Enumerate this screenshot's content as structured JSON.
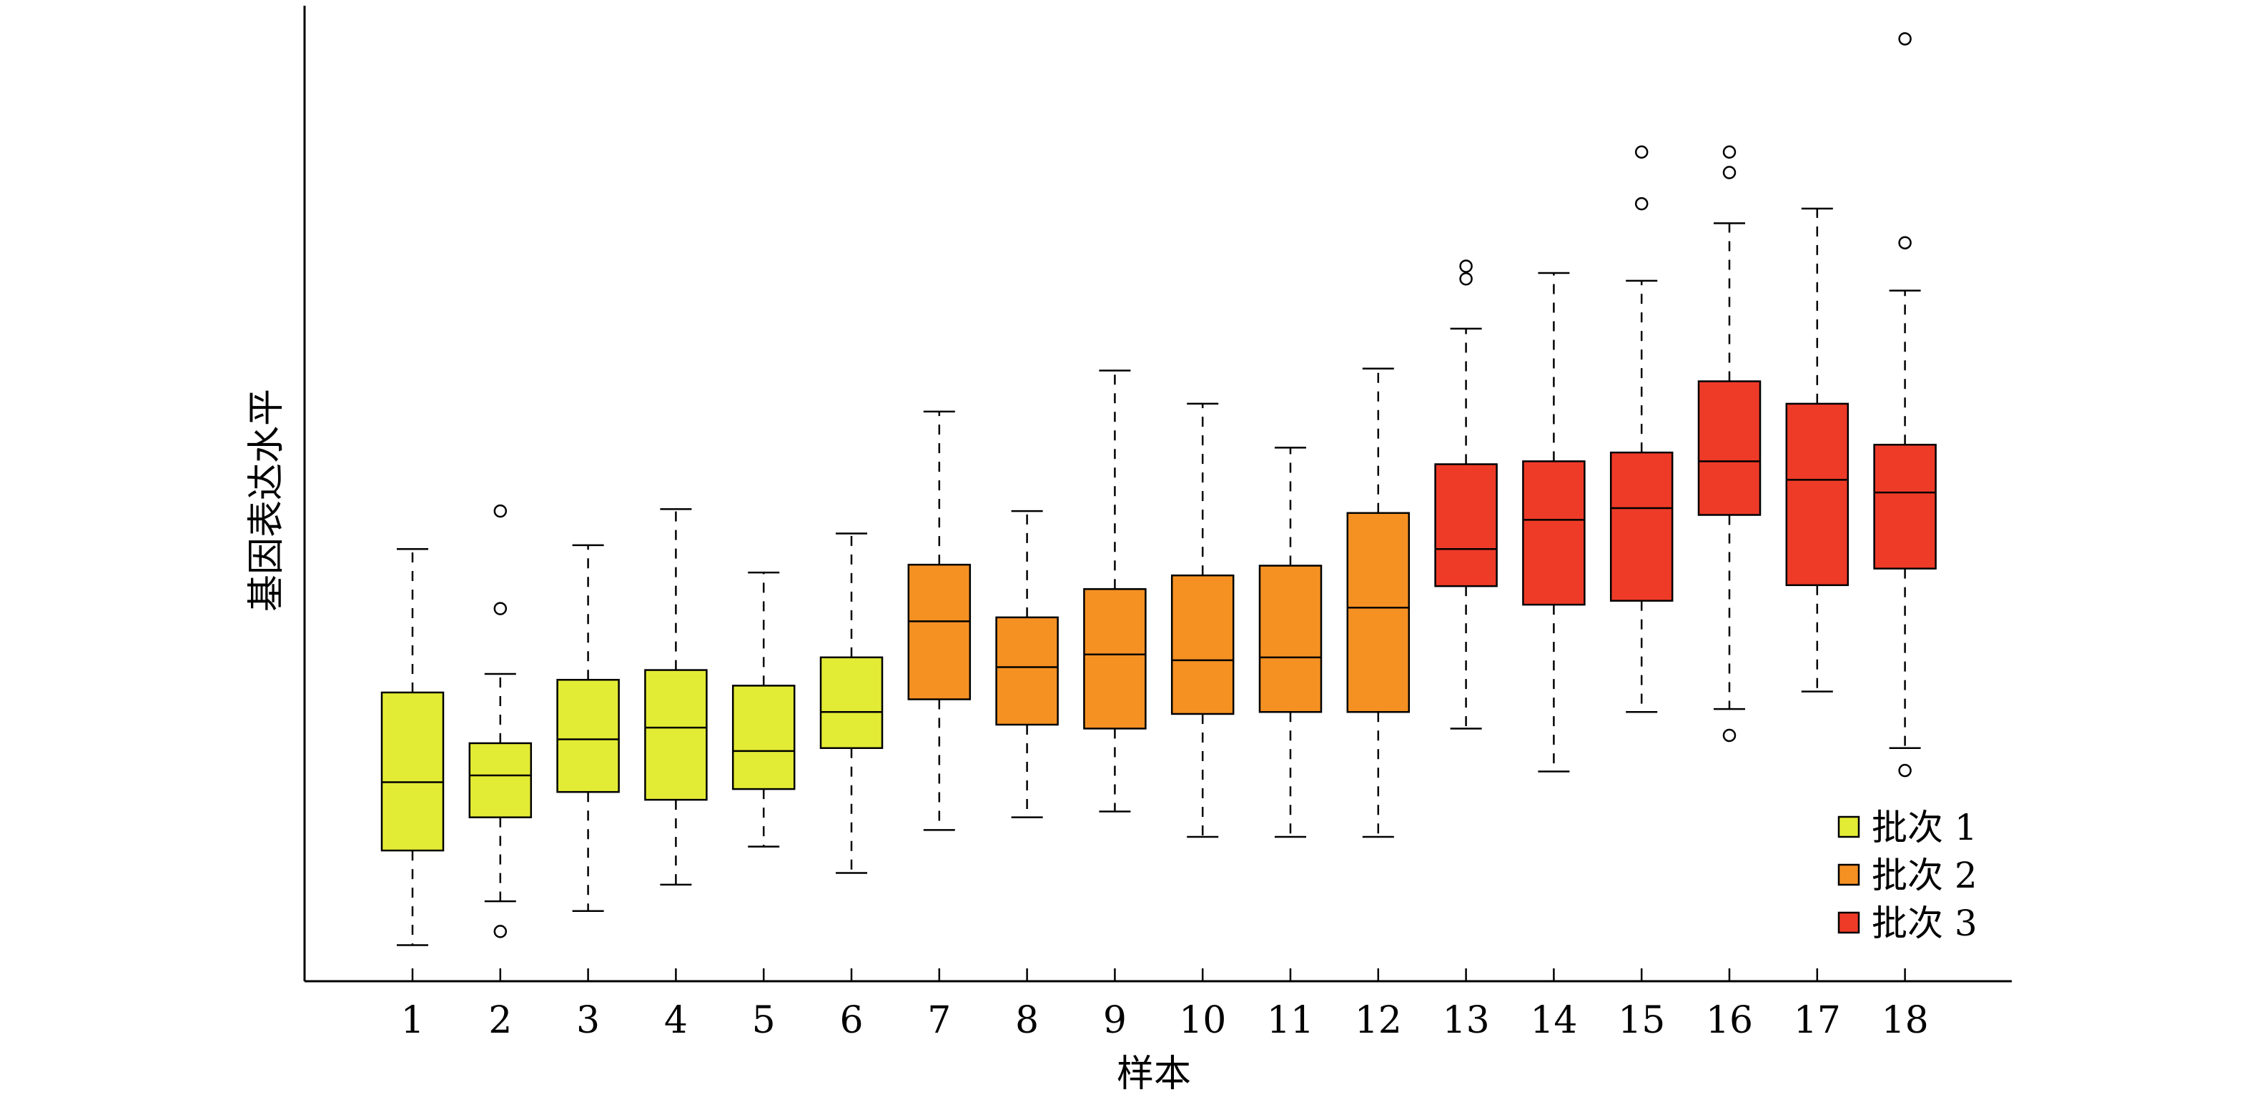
{
  "chart_data": {
    "type": "box",
    "xlabel": "样本",
    "ylabel": "基因表达水平",
    "categories": [
      "1",
      "2",
      "3",
      "4",
      "5",
      "6",
      "7",
      "8",
      "9",
      "10",
      "11",
      "12",
      "13",
      "14",
      "15",
      "16",
      "17",
      "18"
    ],
    "y_axis_ticks_shown": false,
    "ylim": [
      0,
      100
    ],
    "grid": false,
    "legend_position": "bottom-right",
    "series": [
      {
        "name": "批次 1",
        "color": "#E3EC35",
        "categories": [
          "1",
          "2",
          "3",
          "4",
          "5",
          "6"
        ]
      },
      {
        "name": "批次 2",
        "color": "#F59123",
        "categories": [
          "7",
          "8",
          "9",
          "10",
          "11",
          "12"
        ]
      },
      {
        "name": "批次 3",
        "color": "#EE3B28",
        "categories": [
          "13",
          "14",
          "15",
          "16",
          "17",
          "18"
        ]
      }
    ],
    "boxes": [
      {
        "category": "1",
        "series": 0,
        "whisker_low": 3.7,
        "q1": 13.4,
        "median": 20.4,
        "q3": 29.6,
        "whisker_high": 44.3,
        "outliers": []
      },
      {
        "category": "2",
        "series": 0,
        "whisker_low": 8.2,
        "q1": 16.8,
        "median": 21.1,
        "q3": 24.4,
        "whisker_high": 31.5,
        "outliers": [
          5.1,
          38.2,
          48.2
        ]
      },
      {
        "category": "3",
        "series": 0,
        "whisker_low": 7.2,
        "q1": 19.4,
        "median": 24.8,
        "q3": 30.9,
        "whisker_high": 44.7,
        "outliers": []
      },
      {
        "category": "4",
        "series": 0,
        "whisker_low": 9.9,
        "q1": 18.6,
        "median": 26.0,
        "q3": 31.9,
        "whisker_high": 48.4,
        "outliers": []
      },
      {
        "category": "5",
        "series": 0,
        "whisker_low": 13.8,
        "q1": 19.7,
        "median": 23.6,
        "q3": 30.3,
        "whisker_high": 41.9,
        "outliers": []
      },
      {
        "category": "6",
        "series": 0,
        "whisker_low": 11.1,
        "q1": 23.9,
        "median": 27.6,
        "q3": 33.2,
        "whisker_high": 45.9,
        "outliers": []
      },
      {
        "category": "7",
        "series": 1,
        "whisker_low": 15.5,
        "q1": 28.9,
        "median": 36.9,
        "q3": 42.7,
        "whisker_high": 58.4,
        "outliers": []
      },
      {
        "category": "8",
        "series": 1,
        "whisker_low": 16.8,
        "q1": 26.3,
        "median": 32.2,
        "q3": 37.3,
        "whisker_high": 48.2,
        "outliers": []
      },
      {
        "category": "9",
        "series": 1,
        "whisker_low": 17.4,
        "q1": 25.9,
        "median": 33.5,
        "q3": 40.2,
        "whisker_high": 62.6,
        "outliers": []
      },
      {
        "category": "10",
        "series": 1,
        "whisker_low": 14.8,
        "q1": 27.4,
        "median": 32.9,
        "q3": 41.6,
        "whisker_high": 59.2,
        "outliers": []
      },
      {
        "category": "11",
        "series": 1,
        "whisker_low": 14.8,
        "q1": 27.6,
        "median": 33.2,
        "q3": 42.6,
        "whisker_high": 54.7,
        "outliers": []
      },
      {
        "category": "12",
        "series": 1,
        "whisker_low": 14.8,
        "q1": 27.6,
        "median": 38.3,
        "q3": 48.0,
        "whisker_high": 62.8,
        "outliers": []
      },
      {
        "category": "13",
        "series": 2,
        "whisker_low": 25.9,
        "q1": 40.5,
        "median": 44.3,
        "q3": 53.0,
        "whisker_high": 66.9,
        "outliers": [
          72.0,
          73.3
        ]
      },
      {
        "category": "14",
        "series": 2,
        "whisker_low": 21.5,
        "q1": 38.6,
        "median": 47.3,
        "q3": 53.3,
        "whisker_high": 72.6,
        "outliers": []
      },
      {
        "category": "15",
        "series": 2,
        "whisker_low": 27.6,
        "q1": 39.0,
        "median": 48.5,
        "q3": 54.2,
        "whisker_high": 71.8,
        "outliers": [
          79.7,
          85.0
        ]
      },
      {
        "category": "16",
        "series": 2,
        "whisker_low": 27.9,
        "q1": 47.8,
        "median": 53.3,
        "q3": 61.5,
        "whisker_high": 77.7,
        "outliers": [
          25.2,
          82.9,
          85.0
        ]
      },
      {
        "category": "17",
        "series": 2,
        "whisker_low": 29.7,
        "q1": 40.6,
        "median": 51.4,
        "q3": 59.2,
        "whisker_high": 79.2,
        "outliers": []
      },
      {
        "category": "18",
        "series": 2,
        "whisker_low": 23.9,
        "q1": 42.3,
        "median": 50.1,
        "q3": 55.0,
        "whisker_high": 70.8,
        "outliers": [
          21.6,
          75.7,
          96.6
        ]
      }
    ]
  }
}
